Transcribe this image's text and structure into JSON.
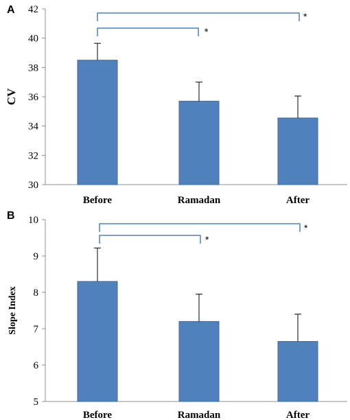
{
  "chart_data": [
    {
      "type": "bar",
      "panel": "A",
      "ylabel": "CV",
      "categories": [
        "Before",
        "Ramadan",
        "After"
      ],
      "values": [
        38.5,
        35.7,
        34.55
      ],
      "error_upper": [
        39.65,
        37.0,
        36.05
      ],
      "ylim": [
        30,
        42
      ],
      "yticks": [
        "30",
        "32",
        "34",
        "36",
        "38",
        "40",
        "42"
      ],
      "grid": false,
      "bar_color": "#4f81bd",
      "significance": [
        {
          "from": "Before",
          "to": "Ramadan",
          "label": "*"
        },
        {
          "from": "Before",
          "to": "After",
          "label": "*"
        }
      ]
    },
    {
      "type": "bar",
      "panel": "B",
      "ylabel": "Slope Index",
      "categories": [
        "Before",
        "Ramadan",
        "After"
      ],
      "values": [
        8.3,
        7.2,
        6.65
      ],
      "error_upper": [
        9.22,
        7.95,
        7.4
      ],
      "ylim": [
        5,
        10
      ],
      "yticks": [
        "5",
        "6",
        "7",
        "8",
        "9",
        "10"
      ],
      "grid": false,
      "bar_color": "#4f81bd",
      "significance": [
        {
          "from": "Before",
          "to": "Ramadan",
          "label": "*"
        },
        {
          "from": "Before",
          "to": "After",
          "label": "*"
        }
      ]
    }
  ]
}
